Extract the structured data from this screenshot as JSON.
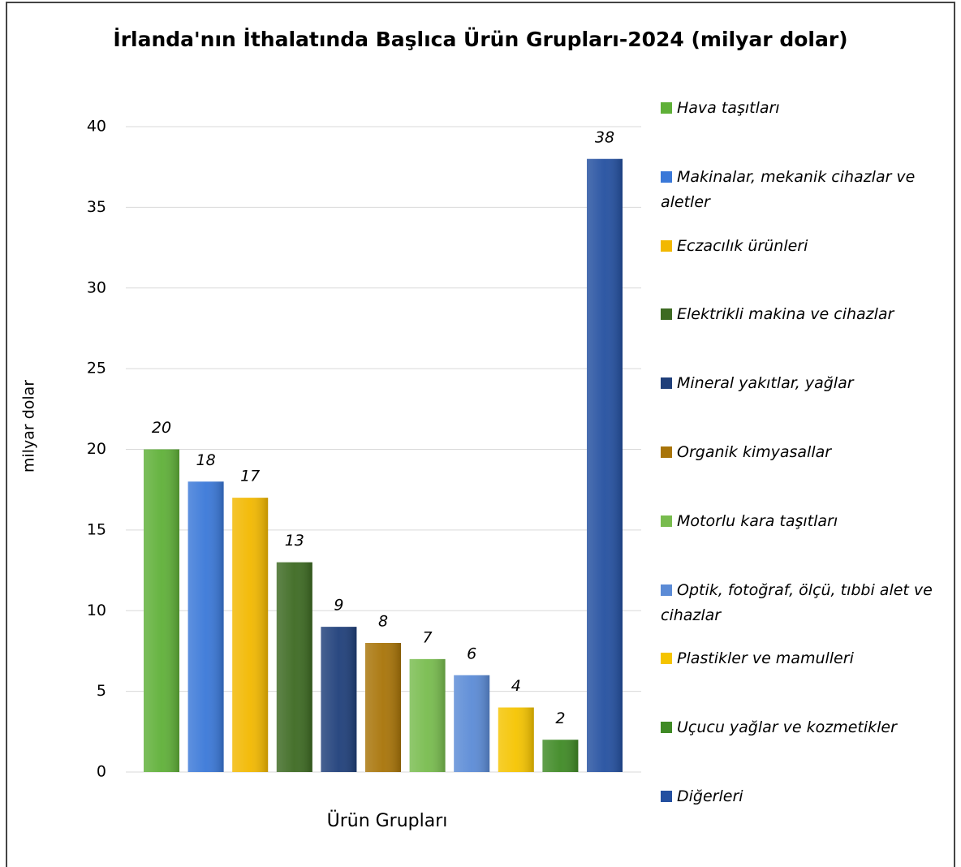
{
  "chart_data": {
    "type": "bar",
    "title": "İrlanda'nın İthalatında Başlıca Ürün Grupları-2024 (milyar dolar)",
    "x_label": "Ürün Grupları",
    "y_label": "milyar dolar",
    "categories": [
      null
    ],
    "series": [
      {
        "name": "Hava taşıtları",
        "color": "#5fb038",
        "values": [
          20
        ]
      },
      {
        "name": "Makinalar, mekanik cihazlar ve aletler",
        "color": "#3a78d8",
        "values": [
          18
        ]
      },
      {
        "name": "Eczacılık ürünleri",
        "color": "#f2b800",
        "values": [
          17
        ]
      },
      {
        "name": "Elektrikli makina ve cihazlar",
        "color": "#3d6a22",
        "values": [
          13
        ]
      },
      {
        "name": "Mineral yakıtlar, yağlar",
        "color": "#1f3f7a",
        "values": [
          9
        ]
      },
      {
        "name": "Organik kimyasallar",
        "color": "#a87408",
        "values": [
          8
        ]
      },
      {
        "name": "Motorlu kara taşıtları",
        "color": "#78bc4e",
        "values": [
          7
        ]
      },
      {
        "name": "Optik, fotoğraf, ölçü, tıbbi alet ve cihazlar",
        "color": "#5b8bd6",
        "values": [
          6
        ]
      },
      {
        "name": "Plastikler ve mamulleri",
        "color": "#f5c400",
        "values": [
          4
        ]
      },
      {
        "name": "Uçucu yağlar ve kozmetikler",
        "color": "#3f8a25",
        "values": [
          2
        ]
      },
      {
        "name": "Diğerleri",
        "color": "#2450a0",
        "values": [
          38
        ]
      }
    ],
    "ylim": [
      0,
      40
    ],
    "yticks": [
      0,
      5,
      10,
      15,
      20,
      25,
      30,
      35,
      40
    ],
    "grid": true,
    "legend": "right"
  }
}
